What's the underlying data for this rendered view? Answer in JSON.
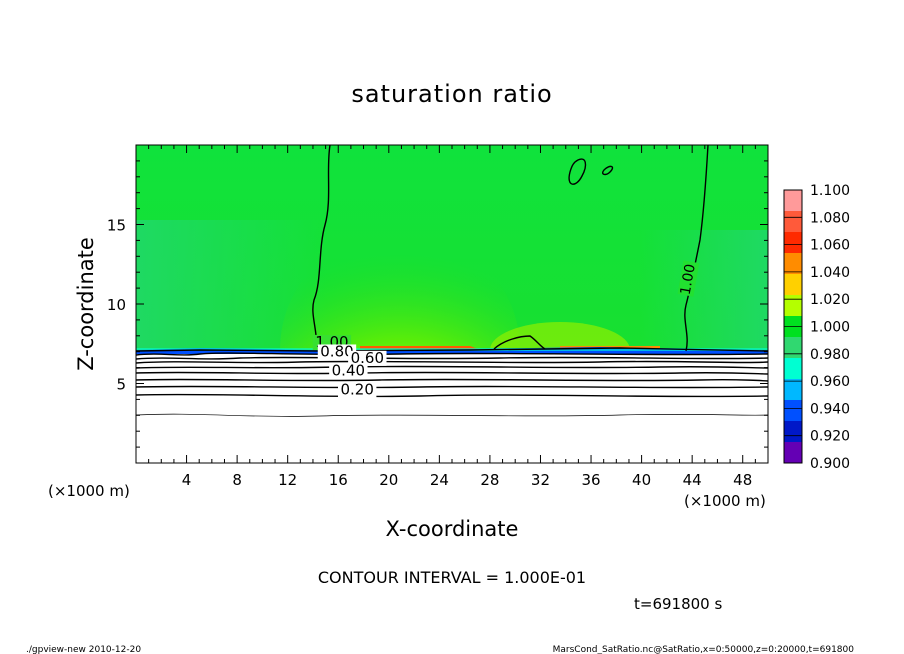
{
  "chart_data": {
    "type": "heatmap",
    "title": "saturation ratio",
    "xlabel": "X-coordinate",
    "ylabel": "Z-coordinate",
    "x_unit_left": "(×1000 m)",
    "x_unit_right": "(×1000 m)",
    "xlim": [
      0,
      50
    ],
    "ylim": [
      0,
      20
    ],
    "x_ticks": [
      4,
      8,
      12,
      16,
      20,
      24,
      28,
      32,
      36,
      40,
      44,
      48
    ],
    "y_ticks": [
      5,
      10,
      15
    ],
    "contour_labels": [
      {
        "text": "1.00",
        "x": 15.5,
        "z": 7.3
      },
      {
        "text": "1.00",
        "x": 44.0,
        "z": 11.5
      },
      {
        "text": "0.80",
        "x": 15.9,
        "z": 6.7
      },
      {
        "text": "0.60",
        "x": 18.3,
        "z": 6.3
      },
      {
        "text": "0.40",
        "x": 16.8,
        "z": 5.5
      },
      {
        "text": "0.20",
        "x": 17.5,
        "z": 4.3
      }
    ],
    "colorbar": {
      "levels": [
        "1.100",
        "1.080",
        "1.060",
        "1.040",
        "1.020",
        "1.000",
        "0.980",
        "0.960",
        "0.940",
        "0.920",
        "0.900"
      ],
      "colors": [
        "#ff9a9a",
        "#ff5a3a",
        "#ff2a00",
        "#ff8c00",
        "#ffd000",
        "#b4ff00",
        "#00e020",
        "#30d870",
        "#00ffd2",
        "#00b8ff",
        "#0050ff",
        "#0018c8",
        "#6400b4"
      ]
    },
    "contour_interval": "CONTOUR INTERVAL = 1.000E-01",
    "time": "t=691800 s",
    "footer_left": "./gpview-new   2010-12-20",
    "footer_right": "MarsCond_SatRatio.nc@SatRatio,x=0:50000,z=0:20000,t=691800"
  }
}
